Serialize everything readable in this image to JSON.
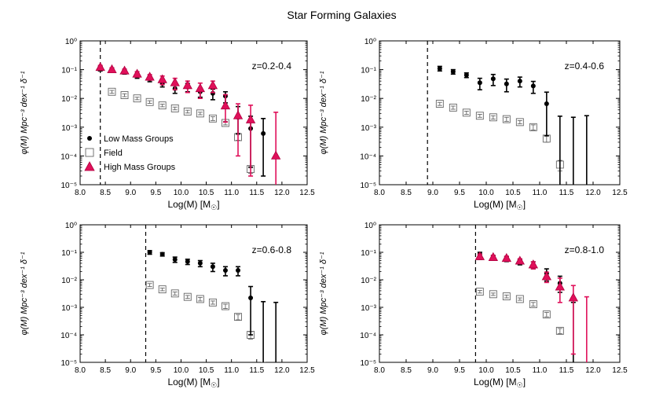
{
  "title": "Star Forming Galaxies",
  "colors": {
    "low": "#000000",
    "field": "#888888",
    "high": "#e0105a",
    "high_edge": "#b00040"
  },
  "legend": [
    {
      "key": "low",
      "label": "Low Mass Groups"
    },
    {
      "key": "field",
      "label": "Field"
    },
    {
      "key": "high",
      "label": "High Mass Groups"
    }
  ],
  "xaxis": {
    "label": "Log(M) [M",
    "sub": "☉",
    "close": "]",
    "lim": [
      8.0,
      12.5
    ],
    "ticks": [
      "8.0",
      "8.5",
      "9.0",
      "9.5",
      "10.0",
      "10.5",
      "11.0",
      "11.5",
      "12.0",
      "12.5"
    ]
  },
  "yaxis": {
    "label": "φ(M) Mpc⁻³ dex⁻¹ δ⁻¹",
    "lim_exp": [
      -5,
      0
    ],
    "ticks": [
      "10⁰",
      "10⁻¹",
      "10⁻²",
      "10⁻³",
      "10⁻⁴",
      "10⁻⁵"
    ]
  },
  "chart_data": [
    {
      "type": "scatter",
      "title": "z=0.2-0.4",
      "completeness_limit": 8.4,
      "series": [
        {
          "name": "Low Mass Groups",
          "marker": "circle",
          "x": [
            8.4,
            8.63,
            8.88,
            9.13,
            9.38,
            9.63,
            9.88,
            10.13,
            10.38,
            10.63,
            10.88,
            11.13,
            11.38,
            11.63
          ],
          "y": [
            0.11,
            0.1,
            0.085,
            0.062,
            0.048,
            0.033,
            0.022,
            0.025,
            0.017,
            0.015,
            0.012,
            0.0022,
            0.0009,
            0.0006
          ],
          "err_lo": [
            0.02,
            0.015,
            0.015,
            0.012,
            0.01,
            0.008,
            0.007,
            0.008,
            0.006,
            0.006,
            0.005,
            0.0016,
            0.00086,
            0.00058
          ],
          "err_hi": [
            0.02,
            0.015,
            0.015,
            0.012,
            0.01,
            0.008,
            0.007,
            0.008,
            0.006,
            0.006,
            0.005,
            0.003,
            0.0015,
            0.0014
          ]
        },
        {
          "name": "Field",
          "marker": "square",
          "x": [
            8.63,
            8.88,
            9.13,
            9.38,
            9.63,
            9.88,
            10.13,
            10.38,
            10.63,
            10.88,
            11.13,
            11.38
          ],
          "y": [
            0.017,
            0.013,
            0.01,
            0.0075,
            0.0057,
            0.0045,
            0.0035,
            0.003,
            0.002,
            0.0014,
            0.00045,
            3.5e-05
          ],
          "err_lo": [
            0.002,
            0.0015,
            0.001,
            0.0008,
            0.0006,
            0.0005,
            0.0004,
            0.0003,
            0.0003,
            0.0002,
            0.0001,
            1e-05
          ],
          "err_hi": [
            0.002,
            0.0015,
            0.001,
            0.0008,
            0.0006,
            0.0005,
            0.0004,
            0.0003,
            0.0003,
            0.0002,
            0.0001,
            1e-05
          ]
        },
        {
          "name": "High Mass Groups",
          "marker": "triangle",
          "x": [
            8.4,
            8.63,
            8.88,
            9.13,
            9.38,
            9.63,
            9.88,
            10.13,
            10.38,
            10.63,
            10.88,
            11.13,
            11.38,
            11.88
          ],
          "y": [
            0.12,
            0.1,
            0.09,
            0.07,
            0.055,
            0.045,
            0.035,
            0.028,
            0.022,
            0.028,
            0.0055,
            0.0025,
            0.0018,
            0.0001
          ],
          "err_lo": [
            0.02,
            0.015,
            0.015,
            0.015,
            0.012,
            0.015,
            0.015,
            0.012,
            0.012,
            0.012,
            0.004,
            0.0024,
            0.00178,
            9.99e-05
          ],
          "err_hi": [
            0.02,
            0.015,
            0.015,
            0.015,
            0.012,
            0.015,
            0.015,
            0.012,
            0.012,
            0.012,
            0.008,
            0.004,
            0.004,
            0.0032
          ]
        }
      ]
    },
    {
      "type": "scatter",
      "title": "z=0.4-0.6",
      "completeness_limit": 8.9,
      "series": [
        {
          "name": "Low Mass Groups",
          "marker": "circle",
          "x": [
            9.13,
            9.38,
            9.63,
            9.88,
            10.13,
            10.38,
            10.63,
            10.88,
            11.13,
            11.38,
            11.63,
            11.88
          ],
          "y": [
            0.11,
            0.085,
            0.065,
            0.035,
            0.048,
            0.032,
            0.04,
            0.027,
            0.0065,
            1e-05,
            1e-05,
            1e-05
          ],
          "err_lo": [
            0.02,
            0.015,
            0.012,
            0.015,
            0.02,
            0.015,
            0.015,
            0.012,
            0.006,
            0,
            0,
            0
          ],
          "err_hi": [
            0.02,
            0.015,
            0.012,
            0.015,
            0.02,
            0.015,
            0.015,
            0.012,
            0.01,
            0.0024,
            0.0022,
            0.0025
          ]
        },
        {
          "name": "Field",
          "marker": "square",
          "x": [
            9.13,
            9.38,
            9.63,
            9.88,
            10.13,
            10.38,
            10.63,
            10.88,
            11.13,
            11.38
          ],
          "y": [
            0.0065,
            0.0048,
            0.0032,
            0.0025,
            0.0022,
            0.0019,
            0.0015,
            0.001,
            0.0004,
            5e-05
          ],
          "err_lo": [
            0.0008,
            0.0006,
            0.0004,
            0.0003,
            0.0003,
            0.0003,
            0.0002,
            0.0002,
            0.0001,
            2e-05
          ],
          "err_hi": [
            0.0008,
            0.0006,
            0.0004,
            0.0003,
            0.0003,
            0.0003,
            0.0002,
            0.0002,
            0.0001,
            2e-05
          ]
        }
      ]
    },
    {
      "type": "scatter",
      "title": "z=0.6-0.8",
      "completeness_limit": 9.3,
      "series": [
        {
          "name": "Low Mass Groups",
          "marker": "circle",
          "x": [
            9.38,
            9.63,
            9.88,
            10.13,
            10.38,
            10.63,
            10.88,
            11.13,
            11.38,
            11.63,
            11.88
          ],
          "y": [
            0.1,
            0.085,
            0.055,
            0.046,
            0.04,
            0.03,
            0.022,
            0.022,
            0.0022,
            1e-05,
            1e-05
          ],
          "err_lo": [
            0.015,
            0.012,
            0.012,
            0.01,
            0.01,
            0.01,
            0.008,
            0.008,
            0.0021,
            0,
            0
          ],
          "err_hi": [
            0.015,
            0.012,
            0.012,
            0.01,
            0.01,
            0.01,
            0.008,
            0.008,
            0.0035,
            0.0016,
            0.0015
          ]
        },
        {
          "name": "Field",
          "marker": "square",
          "x": [
            9.38,
            9.63,
            9.88,
            10.13,
            10.38,
            10.63,
            10.88,
            11.13,
            11.38,
            11.63
          ],
          "y": [
            0.0065,
            0.0045,
            0.0032,
            0.0024,
            0.002,
            0.0015,
            0.0011,
            0.00045,
            0.0001,
            1e-05
          ],
          "err_lo": [
            0.0008,
            0.0005,
            0.0004,
            0.0003,
            0.0003,
            0.0002,
            0.0002,
            0.0001,
            3e-05,
            0
          ],
          "err_hi": [
            0.0008,
            0.0005,
            0.0004,
            0.0003,
            0.0003,
            0.0002,
            0.0002,
            0.0001,
            3e-05,
            0
          ]
        }
      ]
    },
    {
      "type": "scatter",
      "title": "z=0.8-1.0",
      "completeness_limit": 9.8,
      "series": [
        {
          "name": "Low Mass Groups",
          "marker": "circle",
          "x": [
            9.88,
            10.13,
            10.38,
            10.63,
            10.88,
            11.13,
            11.38,
            11.63
          ],
          "y": [
            0.085,
            0.065,
            0.058,
            0.045,
            0.035,
            0.017,
            0.0075,
            1e-05
          ],
          "err_lo": [
            0.015,
            0.012,
            0.012,
            0.01,
            0.01,
            0.008,
            0.004,
            0
          ],
          "err_hi": [
            0.015,
            0.012,
            0.012,
            0.01,
            0.01,
            0.008,
            0.006,
            0.0015
          ]
        },
        {
          "name": "Field",
          "marker": "square",
          "x": [
            9.88,
            10.13,
            10.38,
            10.63,
            10.88,
            11.13,
            11.38
          ],
          "y": [
            0.0037,
            0.003,
            0.0025,
            0.002,
            0.0013,
            0.00055,
            0.00014
          ],
          "err_lo": [
            0.0004,
            0.0003,
            0.0003,
            0.0002,
            0.0002,
            0.0001,
            3e-05
          ],
          "err_hi": [
            0.0004,
            0.0003,
            0.0003,
            0.0002,
            0.0002,
            0.0001,
            3e-05
          ]
        },
        {
          "name": "High Mass Groups",
          "marker": "triangle",
          "x": [
            9.88,
            10.13,
            10.38,
            10.63,
            10.88,
            11.13,
            11.38,
            11.63,
            11.88
          ],
          "y": [
            0.07,
            0.065,
            0.06,
            0.048,
            0.035,
            0.013,
            0.0055,
            0.0022,
            1e-05
          ],
          "err_lo": [
            0.015,
            0.012,
            0.012,
            0.01,
            0.01,
            0.005,
            0.004,
            0.00218,
            0
          ],
          "err_hi": [
            0.015,
            0.012,
            0.012,
            0.01,
            0.01,
            0.006,
            0.006,
            0.004,
            0.0024
          ]
        }
      ]
    }
  ]
}
